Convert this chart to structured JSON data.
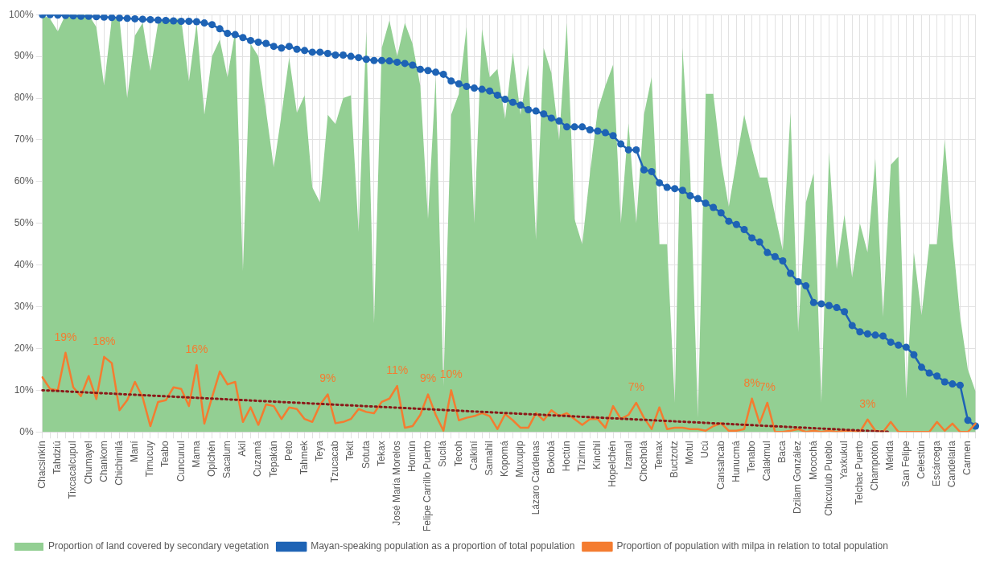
{
  "chart_data": {
    "type": "line",
    "categories": [
      "Chacsinkín",
      null,
      "Tahdziú",
      null,
      "Tixcacalcupul",
      null,
      "Chumayel",
      null,
      "Chankom",
      null,
      "Chichimilá",
      null,
      "Maní",
      null,
      "Timucuy",
      null,
      "Teabo",
      null,
      "Cuncunul",
      null,
      "Mama",
      null,
      "Opichén",
      null,
      "Sacalum",
      null,
      "Akil",
      null,
      "Cuzamá",
      null,
      "Tepakán",
      null,
      "Peto",
      null,
      "Tahmek",
      null,
      "Teya",
      null,
      "Tzucacab",
      null,
      "Tekit",
      null,
      "Sotuta",
      null,
      "Tekax",
      null,
      "José María Morelos",
      null,
      "Homún",
      null,
      "Felipe Carrillo Puerto",
      null,
      "Sucilá",
      null,
      "Tecoh",
      null,
      "Calkiní",
      null,
      "Samahil",
      null,
      "Kopomá",
      null,
      "Muxupip",
      null,
      "Lázaro Cárdenas",
      null,
      "Bokobá",
      null,
      "Hoctún",
      null,
      "Tizimín",
      null,
      "Kinchil",
      null,
      "Hopelchén",
      null,
      "Izamal",
      null,
      "Chocholá",
      null,
      "Temax",
      null,
      "Buctzotz",
      null,
      "Motul",
      null,
      "Ucú",
      null,
      "Cansahcab",
      null,
      "Hunucmá",
      null,
      "Tenabo",
      null,
      "Calakmul",
      null,
      "Baca",
      null,
      "Dzilam González",
      null,
      "Mocochá",
      null,
      "Chicxulub Pueblo",
      null,
      "Yaxkukul",
      null,
      "Telchac Puerto",
      null,
      "Champotón",
      null,
      "Mérida",
      null,
      "San Felipe",
      null,
      "Celestún",
      null,
      "Escárcega",
      null,
      "Candelaria",
      null,
      "Carmen",
      null
    ],
    "series": [
      {
        "type": "area",
        "name": "Proportion of land covered by secondary vegetation",
        "color": "#93cf93",
        "marker": "none",
        "values": [
          100,
          99,
          96,
          100,
          100,
          100,
          100,
          97,
          83,
          99,
          99,
          80,
          95,
          98,
          86.5,
          98,
          99,
          99,
          99,
          84,
          98,
          76,
          90,
          94,
          85,
          96,
          38.6,
          93,
          90,
          77,
          63.4,
          76,
          89.7,
          76.5,
          80.7,
          58.6,
          55,
          76,
          73.8,
          80,
          80.7,
          48,
          96,
          26,
          92,
          98.6,
          90,
          98,
          93,
          83,
          51,
          85,
          11,
          76,
          81,
          97,
          50,
          96.5,
          85,
          87,
          75,
          91,
          76,
          88,
          46,
          92,
          86,
          70,
          98,
          51,
          45,
          62,
          77,
          83,
          88,
          50,
          74,
          50,
          76,
          85,
          45,
          45,
          7,
          92,
          62,
          3.4,
          81,
          81,
          65,
          54,
          65,
          76,
          68,
          61,
          61,
          52,
          43.5,
          76.5,
          24,
          55,
          62,
          7,
          67,
          39,
          52,
          37,
          50,
          43,
          65.5,
          27.6,
          64,
          66,
          8,
          43,
          28,
          45,
          45,
          70,
          47,
          27.6,
          15,
          9.7
        ]
      },
      {
        "type": "line",
        "name": "Mayan-speaking population as a proportion of total population",
        "color": "#1e63b5",
        "marker": "circle",
        "values": [
          100,
          100,
          99.9,
          99.8,
          99.7,
          99.6,
          99.6,
          99.5,
          99.4,
          99.3,
          99.2,
          99.1,
          99,
          98.9,
          98.8,
          98.7,
          98.6,
          98.5,
          98.4,
          98.4,
          98.3,
          98,
          97.6,
          96.6,
          95.5,
          95.2,
          94.5,
          93.8,
          93.4,
          93.1,
          92.4,
          92,
          92.4,
          91.7,
          91.4,
          91,
          91,
          90.7,
          90.3,
          90.3,
          90,
          89.7,
          89.3,
          89,
          89,
          88.9,
          88.6,
          88.3,
          87.9,
          86.9,
          86.6,
          86.2,
          85.7,
          84.1,
          83.4,
          82.8,
          82.4,
          82.1,
          81.7,
          80.7,
          79.7,
          79,
          78.3,
          77.2,
          76.9,
          76.2,
          75.2,
          74.5,
          73.1,
          73.1,
          73.1,
          72.4,
          72.1,
          71.7,
          71,
          69,
          67.6,
          67.6,
          62.8,
          62.4,
          59.7,
          58.6,
          58.3,
          57.9,
          56.6,
          55.9,
          54.8,
          53.8,
          52.5,
          50.5,
          49.7,
          48.5,
          46.5,
          45.5,
          43,
          42,
          41,
          38,
          36,
          35,
          31,
          30.7,
          30.3,
          29.8,
          28.8,
          25.5,
          24,
          23.5,
          23.2,
          23,
          21.5,
          20.8,
          20.3,
          18.5,
          15.5,
          14.1,
          13.4,
          12,
          11.5,
          11.2,
          2.8,
          1.4
        ]
      },
      {
        "type": "line",
        "name": "Proportion of population with milpa in relation to total population",
        "color": "#f47c30",
        "marker": "none",
        "values": [
          13.1,
          10.3,
          10,
          19,
          10.7,
          8.6,
          13.4,
          7.9,
          18,
          16.5,
          5.2,
          7.6,
          12,
          8.3,
          1.4,
          7.2,
          7.6,
          10.7,
          10.3,
          6.2,
          16,
          2,
          8.3,
          14.5,
          11.4,
          12,
          2.4,
          5.9,
          1.7,
          6.6,
          6.2,
          3.1,
          5.9,
          5.5,
          3.1,
          2.4,
          6.5,
          9,
          2.1,
          2.4,
          3.1,
          5.5,
          4.8,
          4.5,
          7.2,
          8,
          11,
          1,
          1.4,
          4.1,
          9,
          4.1,
          0.3,
          10,
          2.8,
          3.4,
          3.8,
          4.5,
          3.8,
          0.7,
          4.3,
          2.8,
          1,
          1,
          4.5,
          2.8,
          5.2,
          3.8,
          4.5,
          3.1,
          1.7,
          3.1,
          3.1,
          1,
          6.2,
          3.1,
          4.1,
          7,
          3.4,
          0.7,
          5.9,
          0.7,
          1,
          1,
          0.7,
          0.7,
          0.3,
          1.4,
          2.1,
          0.3,
          0.3,
          0.7,
          8,
          2.1,
          7,
          0,
          0,
          0.3,
          0.7,
          0,
          0.3,
          0,
          0.3,
          0,
          0.3,
          0.3,
          0,
          3,
          0.3,
          0,
          2.4,
          0,
          0,
          0,
          0,
          0,
          2.4,
          0.3,
          2,
          0,
          0,
          2
        ],
        "value_labels": [
          null,
          null,
          null,
          "19%",
          null,
          null,
          null,
          null,
          "18%",
          null,
          null,
          null,
          null,
          null,
          null,
          null,
          null,
          null,
          null,
          null,
          "16%",
          null,
          null,
          null,
          null,
          null,
          null,
          null,
          null,
          null,
          null,
          null,
          null,
          null,
          null,
          null,
          null,
          "9%",
          null,
          null,
          null,
          null,
          null,
          null,
          null,
          null,
          "11%",
          null,
          null,
          null,
          "9%",
          null,
          null,
          "10%",
          null,
          null,
          null,
          null,
          null,
          null,
          null,
          null,
          null,
          null,
          null,
          null,
          null,
          null,
          null,
          null,
          null,
          null,
          null,
          null,
          null,
          null,
          null,
          "7%",
          null,
          null,
          null,
          null,
          null,
          null,
          null,
          null,
          null,
          null,
          null,
          null,
          null,
          null,
          "8%",
          null,
          "7%",
          null,
          null,
          null,
          null,
          null,
          null,
          null,
          null,
          null,
          null,
          null,
          null,
          "3%",
          null,
          null,
          null,
          null,
          null,
          null,
          null,
          null,
          null,
          null,
          null,
          null,
          null,
          null
        ]
      },
      {
        "type": "line",
        "color": "#8b1a1a",
        "marker": "none",
        "line_style": "dotted",
        "x": [
          "Chacsinkín",
          "Mérida"
        ],
        "values": [
          10,
          0
        ]
      }
    ],
    "ylim": [
      0,
      100
    ],
    "yticks": [
      {
        "value": 0,
        "label": "0%"
      },
      {
        "value": 10,
        "label": "10%"
      },
      {
        "value": 20,
        "label": "20%"
      },
      {
        "value": 30,
        "label": "30%"
      },
      {
        "value": 40,
        "label": "40%"
      },
      {
        "value": 50,
        "label": "50%"
      },
      {
        "value": 60,
        "label": "60%"
      },
      {
        "value": 70,
        "label": "70%"
      },
      {
        "value": 80,
        "label": "80%"
      },
      {
        "value": 90,
        "label": "90%"
      },
      {
        "value": 100,
        "label": "100%"
      }
    ],
    "grid": true,
    "legend": "bottom"
  }
}
